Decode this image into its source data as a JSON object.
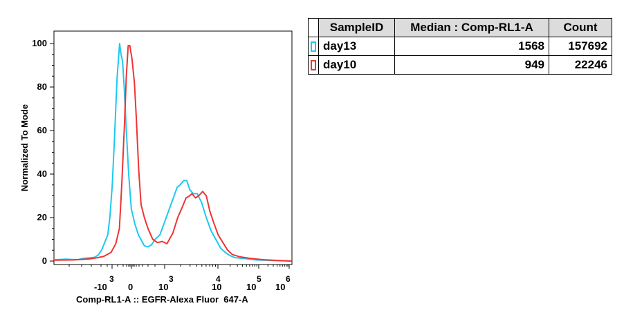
{
  "chart_data": {
    "type": "line",
    "title": "",
    "xlabel": "Comp-RL1-A :: EGFR-Alexa Fluor  647-A",
    "ylabel": "Normalized To Mode",
    "y_ticks": [
      0,
      20,
      40,
      60,
      80,
      100
    ],
    "y_tick_labels": [
      "0",
      "20",
      "40",
      "60",
      "80",
      "100"
    ],
    "ylim": [
      0,
      100
    ],
    "x_scale": "biexponential",
    "x_ticks": [
      {
        "base": "-10",
        "exp": "3"
      },
      {
        "base": "0",
        "exp": ""
      },
      {
        "base": "10",
        "exp": "3"
      },
      {
        "base": "10",
        "exp": "4"
      },
      {
        "base": "10",
        "exp": "5"
      },
      {
        "base": "10",
        "exp": "6"
      }
    ],
    "grid": false,
    "legend_placement": "right",
    "series": [
      {
        "name": "day13",
        "color": "#1ec8f0",
        "points": [
          [
            0.0,
            0.6
          ],
          [
            5.0,
            0.9
          ],
          [
            10.0,
            0.6
          ],
          [
            12.0,
            1.2
          ],
          [
            15.0,
            1.5
          ],
          [
            17.0,
            1.7
          ],
          [
            18.5,
            2.7
          ],
          [
            20.0,
            5
          ],
          [
            21.5,
            9
          ],
          [
            22.6,
            12
          ],
          [
            23.5,
            20
          ],
          [
            24.5,
            35
          ],
          [
            25.5,
            58
          ],
          [
            26.5,
            84
          ],
          [
            27.6,
            100
          ],
          [
            28.2,
            95
          ],
          [
            28.8,
            92
          ],
          [
            29.5,
            80
          ],
          [
            30.4,
            60
          ],
          [
            31.4,
            40
          ],
          [
            32.5,
            24
          ],
          [
            34.0,
            17
          ],
          [
            35.5,
            12
          ],
          [
            37.0,
            9
          ],
          [
            38.0,
            7
          ],
          [
            39.5,
            6.5
          ],
          [
            41.0,
            7.5
          ],
          [
            42.5,
            10
          ],
          [
            44.5,
            12
          ],
          [
            46.5,
            18
          ],
          [
            48.5,
            24
          ],
          [
            50.5,
            30
          ],
          [
            51.8,
            34
          ],
          [
            53.0,
            35
          ],
          [
            54.5,
            37
          ],
          [
            55.8,
            37
          ],
          [
            57.0,
            33
          ],
          [
            58.5,
            31
          ],
          [
            60.2,
            31
          ],
          [
            62.0,
            27
          ],
          [
            64.0,
            20
          ],
          [
            66.0,
            14
          ],
          [
            68.5,
            9
          ],
          [
            70.0,
            6
          ],
          [
            72.0,
            4
          ],
          [
            74.0,
            2.5
          ],
          [
            76.0,
            1.6
          ],
          [
            80.0,
            1.2
          ],
          [
            85.0,
            0.5
          ],
          [
            100.0,
            0.0
          ]
        ]
      },
      {
        "name": "day10",
        "color": "#ee3433",
        "points": [
          [
            0.0,
            0.4
          ],
          [
            8.0,
            0.5
          ],
          [
            12.0,
            0.8
          ],
          [
            15.0,
            1.0
          ],
          [
            18.0,
            1.5
          ],
          [
            21.0,
            2.2
          ],
          [
            24.0,
            4
          ],
          [
            26.0,
            8
          ],
          [
            27.5,
            15
          ],
          [
            28.5,
            35
          ],
          [
            29.6,
            62
          ],
          [
            30.4,
            85
          ],
          [
            31.2,
            99
          ],
          [
            31.9,
            99
          ],
          [
            32.8,
            93
          ],
          [
            33.8,
            82
          ],
          [
            34.6,
            66
          ],
          [
            35.6,
            42
          ],
          [
            36.6,
            26
          ],
          [
            38.0,
            20
          ],
          [
            39.5,
            15
          ],
          [
            41.5,
            10
          ],
          [
            43.5,
            8.5
          ],
          [
            45.5,
            9
          ],
          [
            47.5,
            8
          ],
          [
            50.0,
            13
          ],
          [
            52.0,
            20
          ],
          [
            54.0,
            25
          ],
          [
            55.5,
            29
          ],
          [
            57.0,
            30
          ],
          [
            58.0,
            31
          ],
          [
            59.5,
            29
          ],
          [
            60.8,
            30
          ],
          [
            62.5,
            32
          ],
          [
            64.0,
            30
          ],
          [
            65.5,
            23
          ],
          [
            67.0,
            18
          ],
          [
            69.0,
            12
          ],
          [
            71.0,
            8.5
          ],
          [
            73.0,
            5
          ],
          [
            75.0,
            3
          ],
          [
            78.0,
            2
          ],
          [
            82.0,
            1.3
          ],
          [
            88.0,
            0.6
          ],
          [
            100.0,
            0.0
          ]
        ]
      }
    ]
  },
  "table": {
    "headers": [
      "SampleID",
      "Median : Comp-RL1-A",
      "Count"
    ],
    "rows": [
      {
        "sample": "day13",
        "median": "1568",
        "count": "157692",
        "color": "#1ec8f0"
      },
      {
        "sample": "day10",
        "median": "949",
        "count": "22246",
        "color": "#ee3433"
      }
    ]
  }
}
